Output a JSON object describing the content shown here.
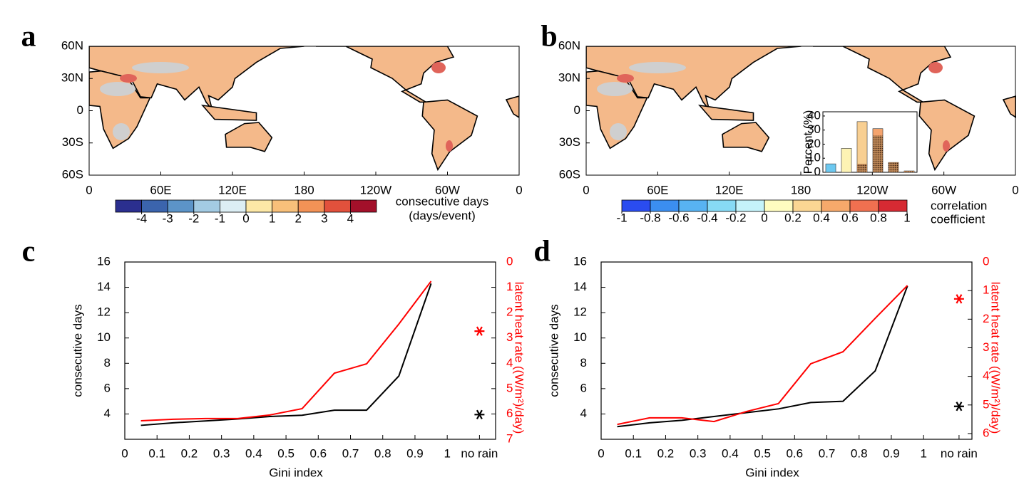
{
  "chart_data": [
    {
      "type": "map",
      "panel": "a",
      "xlim": [
        0,
        360
      ],
      "xticks": [
        0,
        {
          "value": 60,
          "label": "60E"
        },
        {
          "value": 120,
          "label": "120E"
        },
        180,
        {
          "value": 240,
          "label": "120W"
        },
        {
          "value": 300,
          "label": "60W"
        },
        {
          "value": 360,
          "label": "0"
        }
      ],
      "ylim": [
        -60,
        60
      ],
      "yticks": [
        {
          "value": 60,
          "label": "60N"
        },
        {
          "value": 30,
          "label": "30N"
        },
        0,
        {
          "value": -30,
          "label": "30S"
        },
        {
          "value": -60,
          "label": "60S"
        }
      ],
      "colorbar": {
        "lim": [
          -5,
          5
        ],
        "ticks": [
          -4,
          -3,
          -2,
          -1,
          0,
          1,
          2,
          3,
          4
        ],
        "colors": [
          "#2b2f8f",
          "#3b64ad",
          "#5c94c8",
          "#a3cbe3",
          "#dceef4",
          "#fde8a6",
          "#f8c07a",
          "#f39256",
          "#e2513c",
          "#a3102a"
        ],
        "label": [
          "consecutive days",
          "(days/event)"
        ]
      }
    },
    {
      "type": "map",
      "panel": "b",
      "xlim": [
        0,
        360
      ],
      "xticks": [
        0,
        {
          "value": 60,
          "label": "60E"
        },
        {
          "value": 120,
          "label": "120E"
        },
        180,
        {
          "value": 240,
          "label": "120W"
        },
        {
          "value": 300,
          "label": "60W"
        },
        {
          "value": 360,
          "label": "0"
        }
      ],
      "ylim": [
        -60,
        60
      ],
      "yticks": [
        {
          "value": 60,
          "label": "60N"
        },
        {
          "value": 30,
          "label": "30N"
        },
        0,
        {
          "value": -30,
          "label": "30S"
        },
        {
          "value": -60,
          "label": "60S"
        }
      ],
      "colorbar": {
        "lim": [
          -1,
          1
        ],
        "ticks": [
          -1,
          -0.8,
          -0.6,
          -0.4,
          -0.2,
          0,
          0.2,
          0.4,
          0.6,
          0.8,
          1
        ],
        "colors": [
          "#2a4cf0",
          "#3b8ef0",
          "#58b3f2",
          "#87daf5",
          "#c5f3fa",
          "#fffcc0",
          "#fbd693",
          "#f6a96b",
          "#f07050",
          "#d62a33"
        ],
        "label": [
          "correlation",
          "coefficient"
        ]
      }
    },
    {
      "type": "bar",
      "ylabel": "Percent (%)",
      "ylim": [
        0,
        43
      ],
      "yticks": [
        0,
        10,
        20,
        30,
        40
      ],
      "values": [
        6,
        17,
        36,
        31,
        7,
        1
      ],
      "hatched_values": [
        0,
        0,
        6,
        26,
        7,
        1
      ],
      "colors": [
        "#6cc8f0",
        "#fdf3b4",
        "#f8cf92",
        "#f4a46e",
        "#e0564a",
        "#b51f3a"
      ]
    },
    {
      "type": "line",
      "panel": "c",
      "xlabel": "Gini index",
      "ylabel": "consecutive days",
      "y2label": "latent heat rate ((W/m²)/day)",
      "xlim": [
        0,
        1.15
      ],
      "xticks": [
        0,
        0.1,
        0.2,
        0.3,
        0.4,
        0.5,
        0.6,
        0.7,
        0.8,
        0.9,
        1,
        {
          "value": 1.1,
          "label": "no rain"
        }
      ],
      "ylim": [
        2,
        16
      ],
      "yticks": [
        4,
        6,
        8,
        10,
        12,
        14,
        16
      ],
      "y2lim": [
        7,
        0
      ],
      "y2ticks": [
        0,
        1,
        2,
        3,
        4,
        5,
        6,
        7
      ],
      "x": [
        0.05,
        0.15,
        0.25,
        0.35,
        0.45,
        0.55,
        0.65,
        0.75,
        0.85,
        0.95
      ],
      "series": [
        {
          "color": "#000000",
          "values": [
            3.1,
            3.3,
            3.45,
            3.6,
            3.8,
            3.9,
            4.3,
            4.3,
            7.0,
            14.3
          ],
          "no_rain": 3.95
        },
        {
          "color": "#ff0000",
          "axis": "y2",
          "values": [
            6.27,
            6.21,
            6.18,
            6.18,
            6.04,
            5.79,
            4.39,
            4.02,
            2.45,
            0.76
          ],
          "no_rain": 2.73
        }
      ]
    },
    {
      "type": "line",
      "panel": "d",
      "xlabel": "Gini index",
      "ylabel": "consecutive days",
      "y2label": "latent heat rate ((W/m²)/day)",
      "xlim": [
        0,
        1.15
      ],
      "xticks": [
        0,
        0.1,
        0.2,
        0.3,
        0.4,
        0.5,
        0.6,
        0.7,
        0.8,
        0.9,
        1,
        {
          "value": 1.11,
          "label": "no rain"
        }
      ],
      "ylim": [
        2,
        16
      ],
      "yticks": [
        4,
        6,
        8,
        10,
        12,
        14,
        16
      ],
      "y2lim": [
        6.2,
        0
      ],
      "y2ticks": [
        0,
        1,
        2,
        3,
        4,
        5,
        6
      ],
      "x": [
        0.05,
        0.15,
        0.25,
        0.35,
        0.45,
        0.55,
        0.65,
        0.75,
        0.85,
        0.95
      ],
      "series": [
        {
          "color": "#000000",
          "values": [
            3.0,
            3.3,
            3.5,
            3.8,
            4.1,
            4.4,
            4.9,
            5.0,
            7.4,
            14.1
          ],
          "no_rain": 4.6
        },
        {
          "color": "#ff0000",
          "axis": "y2",
          "values": [
            5.68,
            5.45,
            5.45,
            5.58,
            5.23,
            4.95,
            3.56,
            3.14,
            1.97,
            0.82
          ],
          "no_rain": 1.29
        }
      ]
    }
  ]
}
